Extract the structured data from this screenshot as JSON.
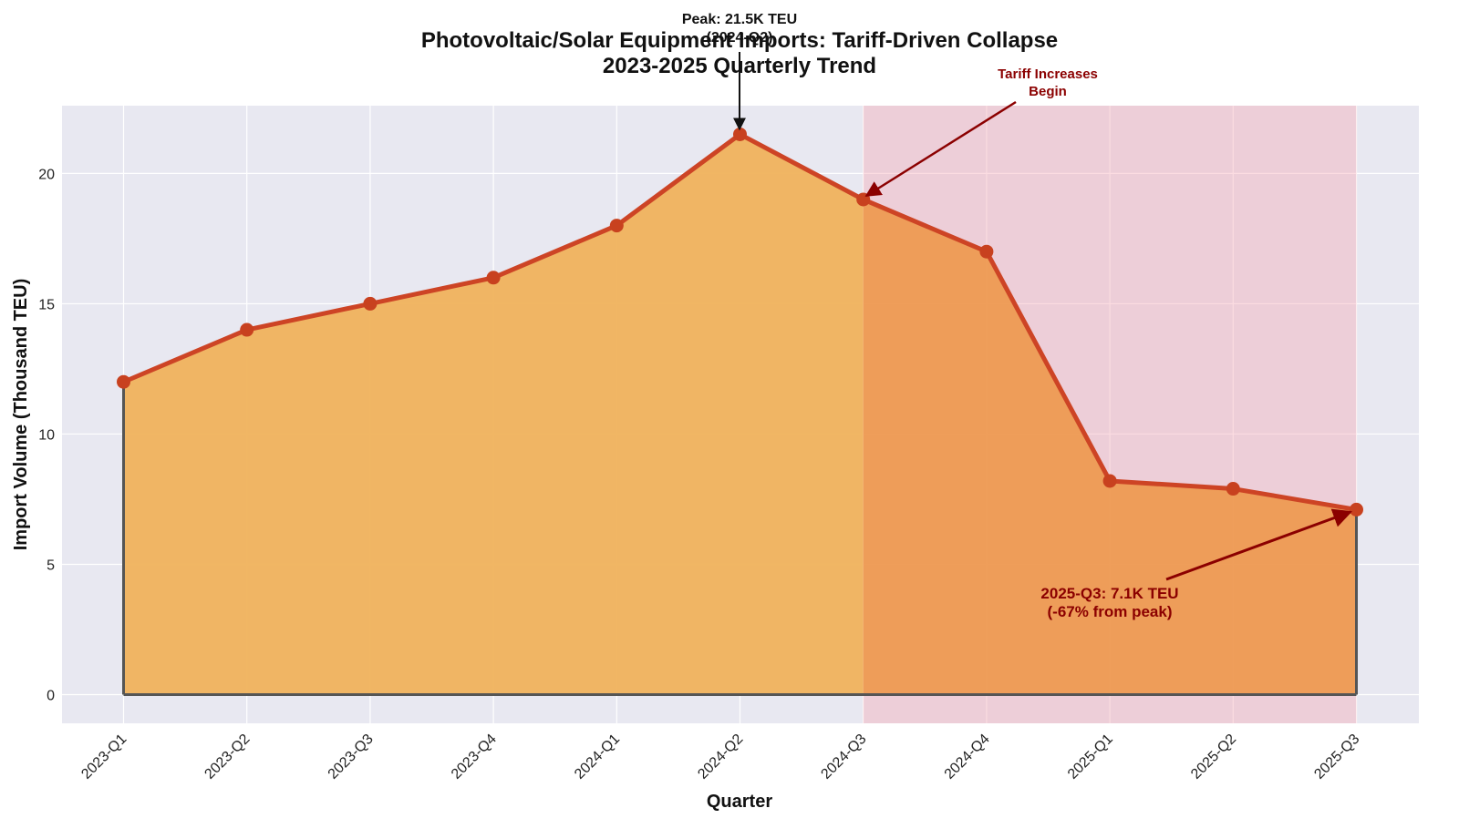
{
  "chart_data": {
    "type": "area",
    "title": "Photovoltaic/Solar Equipment Imports: Tariff-Driven Collapse",
    "subtitle": "2023-2025 Quarterly Trend",
    "xlabel": "Quarter",
    "ylabel": "Import Volume (Thousand TEU)",
    "categories": [
      "2023-Q1",
      "2023-Q2",
      "2023-Q3",
      "2023-Q4",
      "2024-Q1",
      "2024-Q2",
      "2024-Q3",
      "2024-Q4",
      "2025-Q1",
      "2025-Q2",
      "2025-Q3"
    ],
    "values": [
      12.0,
      14.0,
      15.0,
      16.0,
      18.0,
      21.5,
      19.0,
      17.0,
      8.2,
      7.9,
      7.1
    ],
    "ylim": [
      -1.1,
      22.6
    ],
    "yticks": [
      0,
      5,
      10,
      15,
      20
    ],
    "grid": true,
    "shaded_region": {
      "from": "2024-Q3",
      "to": "2025-Q3",
      "color": "#f4a7b5"
    },
    "colors": {
      "plot_background": "#e8e8f1",
      "fill_pre": "#f0b25c",
      "fill_post": "#ee9a52",
      "line": "#cd4425",
      "marker": "#c8411f",
      "baseline": "#555555",
      "annotation_red": "#8b0000",
      "annotation_black": "#111111"
    },
    "annotations": [
      {
        "target": "2024-Q2",
        "value": 21.5,
        "lines": [
          "Peak: 21.5K TEU",
          "(2024-Q2)"
        ],
        "color": "#111111"
      },
      {
        "target": "2024-Q3",
        "value": 19.0,
        "lines": [
          "Tariff Increases",
          "Begin"
        ],
        "color": "#8b0000"
      },
      {
        "target": "2025-Q3",
        "value": 7.1,
        "lines": [
          "2025-Q3: 7.1K TEU",
          "(-67% from peak)"
        ],
        "color": "#8b0000"
      }
    ]
  }
}
